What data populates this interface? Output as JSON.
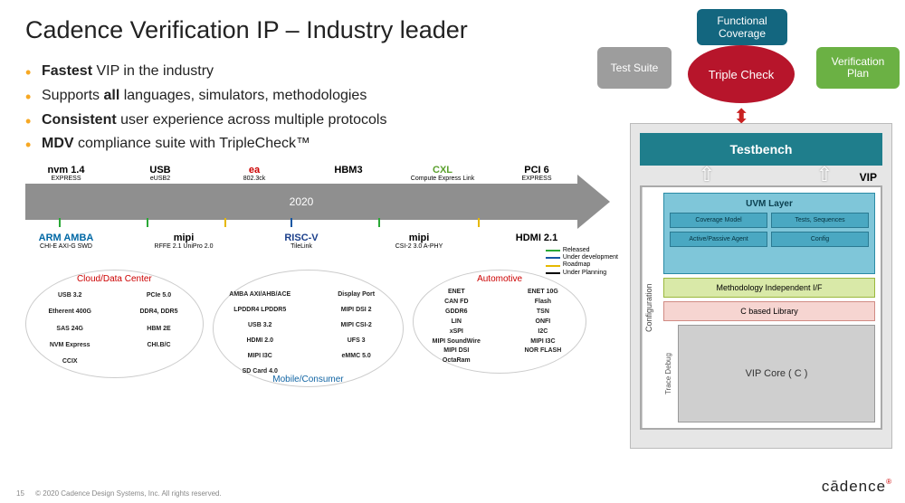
{
  "title": "Cadence Verification IP – Industry leader",
  "bullets": [
    {
      "bold": "Fastest",
      "rest": " VIP in the industry"
    },
    {
      "pre": "Supports ",
      "bold": "all",
      "rest": " languages, simulators, methodologies"
    },
    {
      "bold": "Consistent",
      "rest": " user experience across multiple protocols"
    },
    {
      "bold": "MDV",
      "rest": " compliance suite with TripleCheck™"
    }
  ],
  "timeline": {
    "year": "2020",
    "bar_color": "#8f8f8f",
    "top": [
      {
        "main": "nvm 1.4",
        "sub": "EXPRESS",
        "color": "#000"
      },
      {
        "main": "USB",
        "sub": "eUSB2",
        "color": "#000"
      },
      {
        "main": "ea",
        "sub": "802.3ck",
        "color": "#c00"
      },
      {
        "main": "HBM3",
        "sub": "",
        "color": "#000"
      },
      {
        "main": "CXL",
        "sub": "Compute Express Link",
        "color": "#5aa02c"
      },
      {
        "main": "PCI 6",
        "sub": "EXPRESS",
        "color": "#000"
      }
    ],
    "bot": [
      {
        "main": "ARM AMBA",
        "sub": "CHI-E  AXI-G  SWD",
        "color": "#0068a5"
      },
      {
        "main": "mipi",
        "sub": "RFFE 2.1  UniPro 2.0",
        "color": "#000"
      },
      {
        "main": "RISC-V",
        "sub": "TileLink",
        "color": "#1b3f8b"
      },
      {
        "main": "mipi",
        "sub": "CSI-2 3.0  A-PHY",
        "color": "#000"
      },
      {
        "main": "HDMI 2.1",
        "sub": "",
        "color": "#000"
      }
    ],
    "ticks": [
      {
        "pos": 6,
        "color": "#2aa836"
      },
      {
        "pos": 22,
        "color": "#2aa836"
      },
      {
        "pos": 36,
        "color": "#e6b800"
      },
      {
        "pos": 48,
        "color": "#1556a3"
      },
      {
        "pos": 64,
        "color": "#2aa836"
      },
      {
        "pos": 82,
        "color": "#e6b800"
      }
    ],
    "legend": [
      {
        "label": "Released",
        "color": "#2aa836"
      },
      {
        "label": "Under development",
        "color": "#1556a3"
      },
      {
        "label": "Roadmap",
        "color": "#e6b800"
      },
      {
        "label": "Under Planning",
        "color": "#000"
      }
    ]
  },
  "segments": {
    "cloud": {
      "title": "Cloud/Data Center",
      "title_color": "#cc0000",
      "items": [
        "USB 3.2",
        "PCIe 5.0",
        "Etherent 400G",
        "DDR4, DDR5",
        "SAS 24G",
        "HBM 2E",
        "NVM Express",
        "CHI.B/C",
        "CCIX"
      ]
    },
    "mobile": {
      "title": "Mobile/Consumer",
      "title_color": "#1064a3",
      "items": [
        "AMBA AXI/AHB/ACE",
        "Display Port",
        "LPDDR4 LPDDR5",
        "MIPI DSI 2",
        "USB 3.2",
        "MIPI CSI-2",
        "HDMI 2.0",
        "UFS 3",
        "MIPI I3C",
        "eMMC 5.0",
        "SD Card 4.0"
      ]
    },
    "auto": {
      "title": "Automotive",
      "title_color": "#cc0000",
      "items": [
        "ENET",
        "ENET 10G",
        "CAN FD",
        "Flash",
        "GDDR6",
        "TSN",
        "LIN",
        "ONFI",
        "xSPI",
        "I2C",
        "MIPI SoundWire",
        "MIPI I3C",
        "MIPI DSI",
        "NOR FLASH",
        "OctaRam"
      ]
    }
  },
  "badges": {
    "test": "Test Suite",
    "func": "Functional Coverage",
    "triple": "Triple Check",
    "ver": "Verification Plan",
    "colors": {
      "test": "#9d9d9d",
      "func": "#13667f",
      "triple": "#b7152b",
      "ver": "#6bb144"
    }
  },
  "arch": {
    "testbench": "Testbench",
    "vip": "VIP",
    "config": "Configuration",
    "uvm": "UVM Layer",
    "uvm_cells": [
      "Coverage Model",
      "Tests, Sequences",
      "Active/Passive Agent",
      "Config"
    ],
    "method_if": "Methodology Independent I/F",
    "cbased": "C based Library",
    "trace": "Trace Debug",
    "vipcore": "VIP Core ( C )",
    "colors": {
      "testbench": "#1f7e8c",
      "uvm_bg": "#7fc6d9",
      "uvm_cell": "#4aa8c2",
      "method_if": "#d9e9a8",
      "cbased": "#f6d5d1",
      "vipcore": "#cfcfcf",
      "panel": "#e6e6e6"
    }
  },
  "footer": {
    "page": "15",
    "copyright": "© 2020 Cadence Design Systems, Inc. All rights reserved.",
    "brand": "cādence"
  }
}
